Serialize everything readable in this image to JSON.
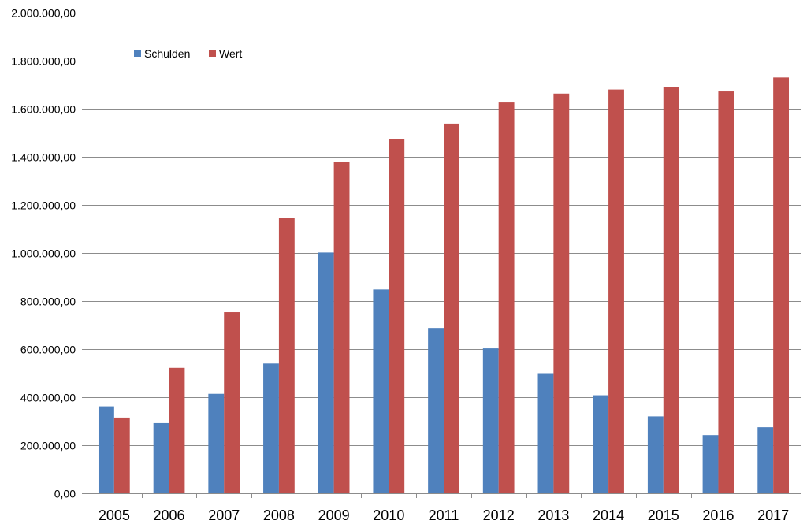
{
  "chart_data": {
    "type": "bar",
    "categories": [
      "2005",
      "2006",
      "2007",
      "2008",
      "2009",
      "2010",
      "2011",
      "2012",
      "2013",
      "2014",
      "2015",
      "2016",
      "2017"
    ],
    "series": [
      {
        "name": "Schulden",
        "color": "#4f81bd",
        "values": [
          362000,
          292000,
          414000,
          540000,
          1002000,
          848000,
          688000,
          603000,
          500000,
          408000,
          320000,
          242000,
          275000
        ]
      },
      {
        "name": "Wert",
        "color": "#c0504d",
        "values": [
          315000,
          522000,
          754000,
          1145000,
          1380000,
          1475000,
          1538000,
          1626000,
          1663000,
          1680000,
          1690000,
          1672000,
          1730000
        ]
      }
    ],
    "ylim": [
      0,
      2000000
    ],
    "yticks": [
      0,
      200000,
      400000,
      600000,
      800000,
      1000000,
      1200000,
      1400000,
      1600000,
      1800000,
      2000000
    ],
    "ytick_labels": [
      "0,00",
      "200.000,00",
      "400.000,00",
      "600.000,00",
      "800.000,00",
      "1.000.000,00",
      "1.200.000,00",
      "1.400.000,00",
      "1.600.000,00",
      "1.800.000,00",
      "2.000.000,00"
    ],
    "grid": true,
    "legend_position": "top-left",
    "title": "",
    "xlabel": "",
    "ylabel": ""
  }
}
